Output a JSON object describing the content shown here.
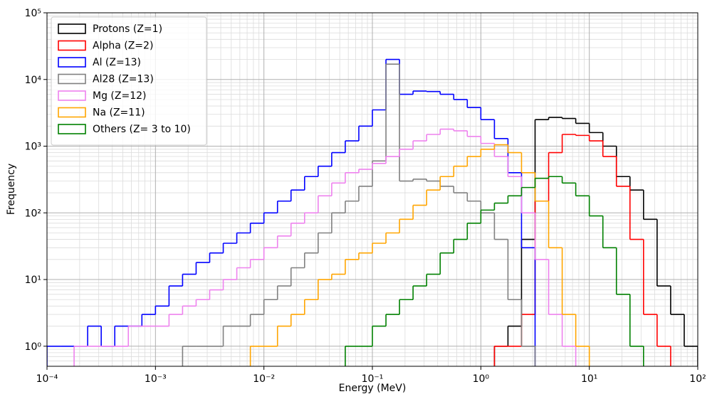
{
  "chart_data": {
    "type": "histogram",
    "xlabel": "Energy (MeV)",
    "ylabel": "Frequency",
    "xscale": "log",
    "yscale": "log",
    "grid": true,
    "minor_grid": true,
    "legend": "upper left",
    "xlim": [
      0.0001,
      100
    ],
    "ylim": [
      0.5,
      100000
    ],
    "xticks": [
      {
        "value": 0.0001,
        "label": "10⁻⁴"
      },
      {
        "value": 0.001,
        "label": "10⁻³"
      },
      {
        "value": 0.01,
        "label": "10⁻²"
      },
      {
        "value": 0.1,
        "label": "10⁻¹"
      },
      {
        "value": 1,
        "label": "10⁰"
      },
      {
        "value": 10,
        "label": "10¹"
      },
      {
        "value": 100,
        "label": "10²"
      }
    ],
    "yticks": [
      {
        "value": 1,
        "label": "10⁰"
      },
      {
        "value": 10,
        "label": "10¹"
      },
      {
        "value": 100,
        "label": "10²"
      },
      {
        "value": 1000,
        "label": "10³"
      },
      {
        "value": 10000,
        "label": "10⁴"
      },
      {
        "value": 100000,
        "label": "10⁵"
      }
    ],
    "bins": [
      0.0001,
      0.0001334,
      0.0001778,
      0.0002371,
      0.0003162,
      0.0004217,
      0.0005623,
      0.0007499,
      0.001,
      0.001334,
      0.001778,
      0.002371,
      0.003162,
      0.004217,
      0.005623,
      0.007499,
      0.01,
      0.01334,
      0.01778,
      0.02371,
      0.03162,
      0.04217,
      0.05623,
      0.07499,
      0.1,
      0.1334,
      0.1778,
      0.2371,
      0.3162,
      0.4217,
      0.5623,
      0.7499,
      1,
      1.334,
      1.778,
      2.371,
      3.162,
      4.217,
      5.623,
      7.499,
      10,
      13.34,
      17.78,
      23.71,
      31.62,
      42.17,
      56.23,
      74.99,
      100
    ],
    "series": [
      {
        "name": "Protons (Z=1)",
        "color": "#000000",
        "values": [
          null,
          null,
          null,
          null,
          null,
          null,
          null,
          null,
          null,
          null,
          null,
          null,
          null,
          null,
          null,
          null,
          null,
          null,
          null,
          null,
          null,
          null,
          null,
          null,
          null,
          null,
          null,
          null,
          null,
          null,
          null,
          null,
          null,
          1,
          2,
          40,
          2500,
          2700,
          2600,
          2200,
          1600,
          1000,
          350,
          220,
          80,
          8,
          3,
          1
        ]
      },
      {
        "name": "Alpha (Z=2)",
        "color": "#ff0000",
        "values": [
          null,
          null,
          null,
          null,
          null,
          null,
          null,
          null,
          null,
          null,
          null,
          null,
          null,
          null,
          null,
          null,
          null,
          null,
          null,
          null,
          null,
          null,
          null,
          null,
          null,
          null,
          null,
          null,
          null,
          null,
          null,
          null,
          null,
          1,
          1,
          3,
          150,
          800,
          1500,
          1450,
          1200,
          700,
          250,
          40,
          3,
          1,
          null,
          null
        ]
      },
      {
        "name": "Al (Z=13)",
        "color": "#0000ff",
        "values": [
          1,
          1,
          1,
          2,
          1,
          2,
          2,
          3,
          4,
          8,
          12,
          18,
          25,
          35,
          50,
          70,
          100,
          150,
          220,
          350,
          500,
          800,
          1200,
          2000,
          3500,
          20000,
          6000,
          6700,
          6600,
          6000,
          5000,
          3800,
          2500,
          1300,
          400,
          30,
          null,
          null,
          null,
          null,
          null,
          null,
          null,
          null,
          null,
          null,
          null,
          null
        ]
      },
      {
        "name": "Al28 (Z=13)",
        "color": "#808080",
        "values": [
          null,
          null,
          null,
          null,
          null,
          null,
          null,
          null,
          null,
          null,
          1,
          1,
          1,
          2,
          2,
          3,
          5,
          8,
          15,
          25,
          50,
          100,
          150,
          250,
          600,
          17000,
          300,
          320,
          300,
          250,
          200,
          150,
          100,
          40,
          5,
          1,
          null,
          null,
          null,
          null,
          null,
          null,
          null,
          null,
          null,
          null,
          null,
          null
        ]
      },
      {
        "name": "Mg (Z=12)",
        "color": "#ee82ee",
        "values": [
          null,
          null,
          1,
          1,
          1,
          1,
          2,
          2,
          2,
          3,
          4,
          5,
          7,
          10,
          15,
          20,
          30,
          45,
          70,
          100,
          180,
          280,
          400,
          450,
          550,
          700,
          900,
          1200,
          1500,
          1800,
          1700,
          1400,
          1100,
          700,
          350,
          100,
          20,
          3,
          1,
          null,
          null,
          null,
          null,
          null,
          null,
          null,
          null,
          null
        ]
      },
      {
        "name": "Na (Z=11)",
        "color": "#ffa500",
        "values": [
          null,
          null,
          null,
          null,
          null,
          null,
          null,
          null,
          null,
          null,
          null,
          null,
          null,
          null,
          null,
          1,
          1,
          2,
          3,
          5,
          10,
          12,
          20,
          25,
          35,
          50,
          80,
          130,
          220,
          350,
          500,
          700,
          900,
          1050,
          800,
          400,
          150,
          30,
          3,
          1,
          null,
          null,
          null,
          null,
          null,
          null,
          null,
          null
        ]
      },
      {
        "name": "Others (Z= 3 to 10)",
        "color": "#008000",
        "values": [
          null,
          null,
          null,
          null,
          null,
          null,
          null,
          null,
          null,
          null,
          null,
          null,
          null,
          null,
          null,
          null,
          null,
          null,
          null,
          null,
          null,
          null,
          1,
          1,
          2,
          3,
          5,
          8,
          12,
          25,
          40,
          70,
          110,
          140,
          180,
          240,
          330,
          350,
          280,
          180,
          90,
          30,
          6,
          1,
          null,
          null,
          null,
          null
        ]
      }
    ]
  }
}
